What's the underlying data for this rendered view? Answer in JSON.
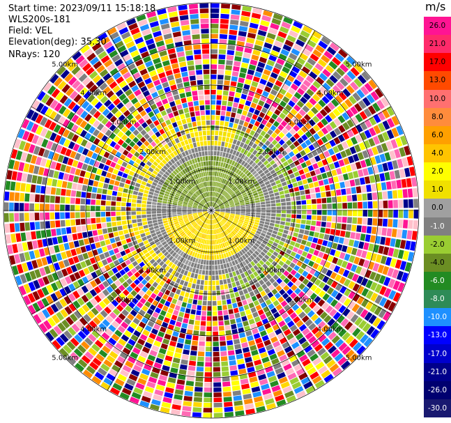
{
  "info": {
    "start_time": "Start time: 2023/09/11 15:18:18",
    "instrument": "WLS200s-181",
    "field": "Field: VEL",
    "elevation": "Elevation(deg): 35.30",
    "nrays": "NRays: 120"
  },
  "colorbar": {
    "unit": "m/s",
    "labels": [
      "26.0",
      "21.0",
      "17.0",
      "13.0",
      "10.0",
      "8.0",
      "6.0",
      "4.0",
      "2.0",
      "1.0",
      "0.0",
      "-1.0",
      "-2.0",
      "-4.0",
      "-6.0",
      "-8.0",
      "-10.0",
      "-13.0",
      "-17.0",
      "-21.0",
      "-26.0",
      "-30.0"
    ],
    "colors": [
      "#ff1493",
      "#ff2a6a",
      "#ff0000",
      "#ff4a00",
      "#ff7070",
      "#ff8c3c",
      "#ffa000",
      "#ffc400",
      "#ffff00",
      "#f0e000",
      "#a0a0a0",
      "#808080",
      "#9acd32",
      "#6b8e23",
      "#228b22",
      "#2e8b57",
      "#1e90ff",
      "#0000ff",
      "#0000cd",
      "#00008b",
      "#000070",
      "#191970"
    ]
  },
  "range_rings": {
    "labels": [
      "1.00km",
      "2.00km",
      "3.00km",
      "4.00km",
      "5.00km"
    ]
  },
  "scene": {
    "background_noise_palette": [
      "#ff1493",
      "#ff0000",
      "#ffff00",
      "#0000ff",
      "#00008b",
      "#228b22",
      "#9acd32",
      "#ff8c00",
      "#808080",
      "#ffc0cb",
      "#ff69b4",
      "#6b8e23",
      "#ffd700",
      "#1e90ff",
      "#8b0000"
    ]
  }
}
